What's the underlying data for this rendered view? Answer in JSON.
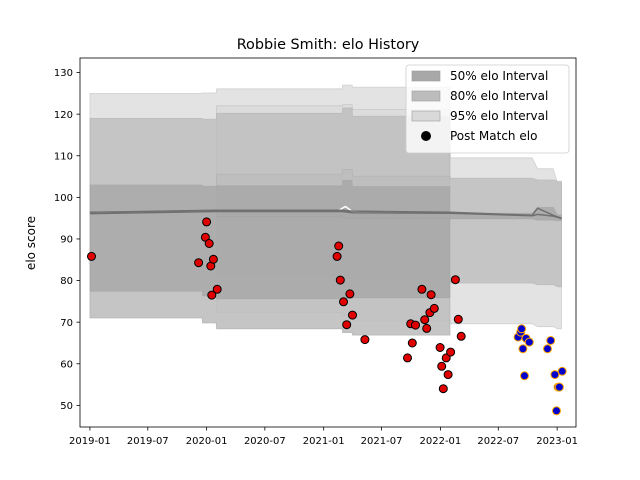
{
  "chart_data": {
    "type": "scatter",
    "title": "Robbie Smith: elo History",
    "xlabel": "",
    "ylabel": "elo score",
    "xlim": [
      "2018-12-01",
      "2023-03-01"
    ],
    "ylim": [
      44.8,
      133.5
    ],
    "x_ticks": [
      "2019-01",
      "2019-07",
      "2020-01",
      "2020-07",
      "2021-01",
      "2021-07",
      "2022-01",
      "2022-07",
      "2023-01"
    ],
    "y_ticks": [
      50,
      60,
      70,
      80,
      90,
      100,
      110,
      120,
      130
    ],
    "grid": false,
    "legend_position": "upper right",
    "legend": [
      {
        "label": "50% elo Interval",
        "kind": "band",
        "color": "#a8a8a8"
      },
      {
        "label": "80% elo Interval",
        "kind": "band",
        "color": "#bdbdbd"
      },
      {
        "label": "95% elo Interval",
        "kind": "band",
        "color": "#d9d9d9"
      },
      {
        "label": "Post Match elo",
        "kind": "marker",
        "color": "#000000"
      }
    ],
    "bands": {
      "groups": [
        {
          "x": [
            "2019-01-01",
            "2019-12-18",
            "2019-12-19",
            "2020-01-31",
            "2020-02-01",
            "2021-02-28",
            "2021-03-01",
            "2021-03-31",
            "2021-04-01",
            "2022-01-31"
          ],
          "p50": [
            [
              77.4,
              103.0
            ],
            [
              77.4,
              103.0
            ],
            [
              76.3,
              102.7
            ],
            [
              76.3,
              102.7
            ],
            [
              75.6,
              102.8
            ],
            [
              75.6,
              102.8
            ],
            [
              75.7,
              104.1
            ],
            [
              75.7,
              104.1
            ],
            [
              75.8,
              102.6
            ],
            [
              75.8,
              102.6
            ]
          ],
          "p80": [
            [
              71.0,
              119.0
            ],
            [
              71.0,
              119.0
            ],
            [
              69.8,
              118.8
            ],
            [
              69.8,
              118.8
            ],
            [
              68.4,
              120.2
            ],
            [
              68.4,
              120.2
            ],
            [
              67.5,
              121.5
            ],
            [
              67.5,
              121.5
            ],
            [
              66.9,
              119.5
            ],
            [
              66.9,
              119.5
            ]
          ],
          "p95": [
            [
              71.0,
              125.0
            ],
            [
              71.0,
              125.0
            ],
            [
              69.8,
              125.1
            ],
            [
              69.8,
              125.1
            ],
            [
              68.4,
              126.1
            ],
            [
              68.4,
              126.1
            ],
            [
              67.5,
              127.0
            ],
            [
              67.5,
              127.0
            ],
            [
              66.9,
              126.5
            ],
            [
              66.9,
              126.5
            ]
          ]
        },
        {
          "x": [
            "2020-02-01",
            "2021-02-28",
            "2021-03-01",
            "2021-03-31",
            "2021-04-01",
            "2022-01-31",
            "2022-02-01",
            "2022-10-15",
            "2022-11-01",
            "2022-12-20",
            "2023-01-02",
            "2023-01-15"
          ],
          "p50": [
            [
              95.4,
              96.9
            ],
            [
              95.4,
              96.9
            ],
            [
              95.0,
              97.3
            ],
            [
              95.0,
              97.3
            ],
            [
              95.0,
              96.5
            ],
            [
              95.0,
              96.5
            ],
            [
              94.8,
              96.2
            ],
            [
              94.8,
              96.2
            ],
            [
              94.5,
              97.6
            ],
            [
              94.5,
              97.6
            ],
            [
              94.4,
              95.8
            ],
            [
              94.4,
              95.8
            ]
          ],
          "p80": [
            [
              81.2,
              105.6
            ],
            [
              81.2,
              105.6
            ],
            [
              80.5,
              106.7
            ],
            [
              80.5,
              106.7
            ],
            [
              80.4,
              105.1
            ],
            [
              80.4,
              105.1
            ],
            [
              79.4,
              104.6
            ],
            [
              79.4,
              104.6
            ],
            [
              79.0,
              104.2
            ],
            [
              79.0,
              104.2
            ],
            [
              78.5,
              103.9
            ],
            [
              78.5,
              103.9
            ]
          ],
          "p95": [
            [
              72.3,
              122.0
            ],
            [
              72.3,
              122.0
            ],
            [
              71.5,
              122.3
            ],
            [
              71.5,
              122.3
            ],
            [
              70.3,
              121.1
            ],
            [
              70.3,
              121.1
            ],
            [
              69.6,
              109.5
            ],
            [
              69.6,
              109.5
            ],
            [
              68.9,
              106.9
            ],
            [
              68.9,
              106.9
            ],
            [
              68.4,
              103.4
            ],
            [
              68.4,
              103.4
            ]
          ]
        }
      ]
    },
    "series": [
      {
        "kind": "line",
        "color": "#ffffff",
        "x": [
          "2019-01-01",
          "2019-12-15",
          "2020-02-01",
          "2021-02-15",
          "2021-03-10",
          "2021-04-01",
          "2021-08-15",
          "2022-01-31"
        ],
        "y": [
          96.3,
          96.7,
          96.8,
          96.8,
          97.8,
          96.6,
          96.4,
          96.4
        ]
      },
      {
        "kind": "line",
        "color": "#707070",
        "x": [
          "2019-01-01",
          "2020-02-01",
          "2021-02-28",
          "2021-04-01",
          "2022-01-31",
          "2022-10-15",
          "2022-11-01",
          "2022-12-20",
          "2023-01-02",
          "2023-01-15"
        ],
        "y": [
          96.1,
          96.6,
          96.6,
          96.3,
          96.2,
          95.6,
          95.9,
          95.5,
          95.2,
          94.9
        ]
      },
      {
        "kind": "line",
        "color": "#707070",
        "x": [
          "2019-01-01",
          "2020-02-01",
          "2021-02-28",
          "2021-04-01",
          "2022-01-31",
          "2022-10-15",
          "2022-11-01",
          "2022-12-20",
          "2023-01-02",
          "2023-01-15"
        ],
        "y": [
          96.4,
          96.9,
          96.9,
          96.7,
          96.4,
          95.7,
          97.4,
          95.7,
          95.3,
          95.0
        ]
      },
      {
        "name": "Post Match elo",
        "kind": "points",
        "x": [
          "2019-01-06",
          "2019-12-07",
          "2019-12-28",
          "2020-01-01",
          "2020-01-09",
          "2020-01-14",
          "2020-01-17",
          "2020-01-22",
          "2020-02-03",
          "2021-02-12",
          "2021-02-17",
          "2021-02-22",
          "2021-03-04",
          "2021-03-14",
          "2021-03-24",
          "2021-04-01",
          "2021-05-10",
          "2021-09-20",
          "2021-09-30",
          "2021-10-05",
          "2021-10-15",
          "2021-11-04",
          "2021-11-13",
          "2021-11-19",
          "2021-11-29",
          "2021-12-03",
          "2021-12-13",
          "2021-12-31",
          "2022-01-05",
          "2022-01-10",
          "2022-01-19",
          "2022-01-25",
          "2022-02-02",
          "2022-02-17",
          "2022-02-26",
          "2022-03-07"
        ],
        "y": [
          85.8,
          84.3,
          90.4,
          94.1,
          88.9,
          83.5,
          76.5,
          85.1,
          77.9,
          85.8,
          88.3,
          80.1,
          74.9,
          69.4,
          76.8,
          71.7,
          65.8,
          61.4,
          69.6,
          65.0,
          69.3,
          77.9,
          70.6,
          68.5,
          72.3,
          76.6,
          73.3,
          63.9,
          59.4,
          54.0,
          61.4,
          57.4,
          62.8,
          80.2,
          70.7,
          66.6
        ],
        "fill": "#e00000",
        "edge": "#000000"
      },
      {
        "name": "",
        "kind": "points",
        "x": [
          "2022-09-01",
          "2022-09-09",
          "2022-09-12",
          "2022-09-16",
          "2022-09-21",
          "2022-09-26",
          "2022-10-06",
          "2022-12-02",
          "2022-12-12",
          "2022-12-25",
          "2022-12-30",
          "2023-01-04",
          "2023-01-08",
          "2023-01-17"
        ],
        "y": [
          66.4,
          67.6,
          68.4,
          63.6,
          57.1,
          66.1,
          65.2,
          63.6,
          65.6,
          57.4,
          48.7,
          54.4,
          54.4,
          58.2
        ],
        "fill": "#0000cc",
        "edge": "#ffa500"
      }
    ]
  }
}
